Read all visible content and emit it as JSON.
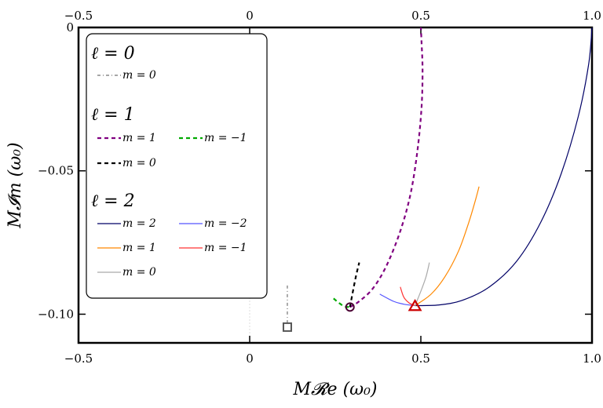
{
  "chart_data": {
    "type": "line",
    "title": "",
    "xlabel": "M𝓡e (ω₀)",
    "ylabel": "M𝓘m (ω₀)",
    "xlim": [
      -0.5,
      1.0
    ],
    "ylim": [
      -0.11,
      0.0
    ],
    "x_ticks": [
      -0.5,
      0,
      0.5,
      1.0
    ],
    "x_tick_labels": [
      "−0.5",
      "0",
      "0.5",
      "1.0"
    ],
    "y_ticks": [
      0,
      -0.05,
      -0.1
    ],
    "y_tick_labels": [
      "0",
      "−0.05",
      "−0.10"
    ],
    "legend_position": "top-left",
    "legend_groups": [
      {
        "heading": "ℓ = 0",
        "entries": [
          {
            "label": "m = 0",
            "series": "l0m0"
          }
        ]
      },
      {
        "heading": "ℓ = 1",
        "entries": [
          {
            "label": "m = 1",
            "series": "l1m1"
          },
          {
            "label": "m = −1",
            "series": "l1mm1"
          },
          {
            "label": "m = 0",
            "series": "l1m0"
          }
        ]
      },
      {
        "heading": "ℓ = 2",
        "entries": [
          {
            "label": "m = 2",
            "series": "l2m2"
          },
          {
            "label": "m = −2",
            "series": "l2mm2"
          },
          {
            "label": "m = 1",
            "series": "l2m1"
          },
          {
            "label": "m = −1",
            "series": "l2mm1"
          },
          {
            "label": "m = 0",
            "series": "l2m0"
          }
        ]
      }
    ],
    "series": [
      {
        "id": "l0m0",
        "name": "ℓ=0, m=0",
        "color": "#888888",
        "dash": "dashdot",
        "x": [
          0.11,
          0.11,
          0.11,
          0.11
        ],
        "y": [
          -0.09,
          -0.094,
          -0.099,
          -0.103
        ]
      },
      {
        "id": "l1m1",
        "name": "ℓ=1, m=1",
        "color": "#800080",
        "dash": "dash",
        "x": [
          0.293,
          0.32,
          0.36,
          0.4,
          0.44,
          0.47,
          0.49,
          0.502,
          0.505,
          0.502,
          0.5
        ],
        "y": [
          -0.0975,
          -0.0955,
          -0.091,
          -0.083,
          -0.071,
          -0.058,
          -0.043,
          -0.028,
          -0.015,
          -0.005,
          0.0
        ]
      },
      {
        "id": "l1mm1",
        "name": "ℓ=1, m=−1",
        "color": "#00aa00",
        "dash": "dash",
        "x": [
          0.245,
          0.26,
          0.277,
          0.293
        ],
        "y": [
          -0.0945,
          -0.096,
          -0.0973,
          -0.0975
        ]
      },
      {
        "id": "l1m0",
        "name": "ℓ=1, m=0",
        "color": "#000000",
        "dash": "dash",
        "x": [
          0.293,
          0.3,
          0.31,
          0.32
        ],
        "y": [
          -0.0975,
          -0.093,
          -0.087,
          -0.082
        ]
      },
      {
        "id": "l2m2",
        "name": "ℓ=2, m=2",
        "color": "#000066",
        "dash": "solid",
        "x": [
          0.483,
          0.55,
          0.62,
          0.7,
          0.78,
          0.85,
          0.91,
          0.96,
          0.99,
          1.0
        ],
        "y": [
          -0.097,
          -0.0968,
          -0.0952,
          -0.0905,
          -0.0815,
          -0.068,
          -0.051,
          -0.031,
          -0.013,
          0.0
        ]
      },
      {
        "id": "l2mm2",
        "name": "ℓ=2, m=−2",
        "color": "#5555ff",
        "dash": "solid",
        "x": [
          0.38,
          0.42,
          0.45,
          0.483
        ],
        "y": [
          -0.093,
          -0.0955,
          -0.0965,
          -0.097
        ]
      },
      {
        "id": "l2m1",
        "name": "ℓ=2, m=1",
        "color": "#ff8800",
        "dash": "solid",
        "x": [
          0.483,
          0.53,
          0.57,
          0.61,
          0.64,
          0.66,
          0.67
        ],
        "y": [
          -0.097,
          -0.093,
          -0.087,
          -0.078,
          -0.068,
          -0.06,
          -0.0555
        ]
      },
      {
        "id": "l2mm1",
        "name": "ℓ=2, m=−1",
        "color": "#ff3333",
        "dash": "solid",
        "x": [
          0.44,
          0.45,
          0.465,
          0.483
        ],
        "y": [
          -0.0905,
          -0.094,
          -0.096,
          -0.097
        ]
      },
      {
        "id": "l2m0",
        "name": "ℓ=2, m=0",
        "color": "#aaaaaa",
        "dash": "solid",
        "x": [
          0.483,
          0.5,
          0.515,
          0.525
        ],
        "y": [
          -0.097,
          -0.092,
          -0.087,
          -0.082
        ]
      }
    ],
    "markers": [
      {
        "shape": "square",
        "x": 0.11,
        "y": -0.1045,
        "color": "#555555"
      },
      {
        "shape": "circle",
        "x": 0.293,
        "y": -0.0975,
        "color": "#4a0033"
      },
      {
        "shape": "triangle",
        "x": 0.483,
        "y": -0.0972,
        "color": "#cc0000"
      }
    ]
  }
}
